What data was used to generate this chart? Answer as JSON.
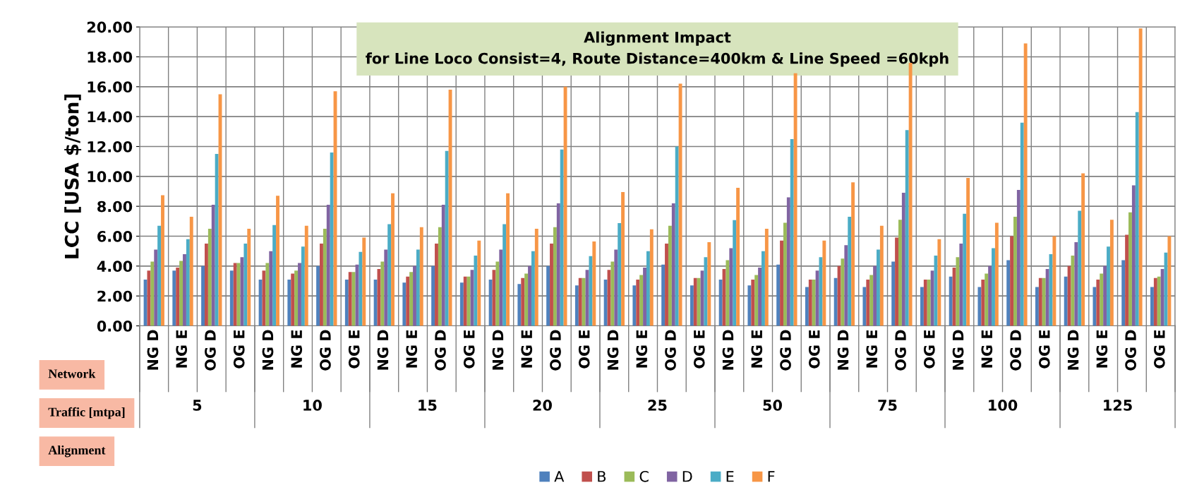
{
  "chart_data": {
    "type": "bar",
    "title": "Alignment Impact",
    "subtitle": "for Line Loco Consist=4, Route Distance=400km & Line Speed =60kph",
    "ylabel": "LCC [USA $/ton]",
    "categories": [
      "NG D",
      "NG E",
      "OG D",
      "OG E",
      "NG D",
      "NG E",
      "OG D",
      "OG E",
      "NG D",
      "NG E",
      "OG D",
      "OG E",
      "NG D",
      "NG E",
      "OG D",
      "OG E",
      "NG D",
      "NG E",
      "OG D",
      "OG E",
      "NG D",
      "NG E",
      "OG D",
      "OG E",
      "NG D",
      "NG E",
      "OG D",
      "OG E",
      "NG D",
      "NG E",
      "OG D",
      "OG E",
      "NG D",
      "NG E",
      "OG D",
      "OG E"
    ],
    "series": [
      {
        "name": "A",
        "color": "#4f81bd",
        "values": [
          3.1,
          3.7,
          4.0,
          3.7,
          3.1,
          3.1,
          4.0,
          3.1,
          3.1,
          2.9,
          4.0,
          2.9,
          3.1,
          2.8,
          4.0,
          2.7,
          3.1,
          2.7,
          4.1,
          2.7,
          3.1,
          2.7,
          4.1,
          2.6,
          3.2,
          2.6,
          4.3,
          2.6,
          3.3,
          2.6,
          4.4,
          2.6,
          3.3,
          2.6,
          4.4,
          2.6
        ]
      },
      {
        "name": "B",
        "color": "#c0504d",
        "values": [
          3.7,
          3.9,
          5.5,
          4.2,
          3.7,
          3.5,
          5.5,
          3.6,
          3.8,
          3.3,
          5.5,
          3.3,
          3.75,
          3.2,
          5.5,
          3.2,
          3.75,
          3.1,
          5.5,
          3.2,
          3.8,
          3.1,
          5.7,
          3.1,
          4.0,
          3.1,
          5.9,
          3.1,
          3.9,
          3.1,
          6.0,
          3.2,
          4.0,
          3.1,
          6.1,
          3.2
        ]
      },
      {
        "name": "C",
        "color": "#9bbb59",
        "values": [
          4.3,
          4.35,
          6.5,
          4.2,
          4.2,
          3.7,
          6.5,
          3.6,
          4.3,
          3.6,
          6.6,
          3.3,
          4.3,
          3.5,
          6.6,
          3.2,
          4.3,
          3.4,
          6.7,
          3.2,
          4.4,
          3.4,
          6.9,
          3.1,
          4.5,
          3.4,
          7.1,
          3.1,
          4.6,
          3.5,
          7.3,
          3.2,
          4.7,
          3.5,
          7.6,
          3.3
        ]
      },
      {
        "name": "D",
        "color": "#8064a2",
        "values": [
          5.1,
          4.8,
          8.1,
          4.6,
          5.0,
          4.2,
          8.1,
          4.1,
          5.1,
          4.0,
          8.1,
          3.75,
          5.1,
          4.0,
          8.2,
          3.75,
          5.1,
          3.9,
          8.2,
          3.7,
          5.2,
          3.9,
          8.6,
          3.7,
          5.4,
          4.0,
          8.9,
          3.7,
          5.5,
          4.0,
          9.1,
          3.8,
          5.6,
          4.0,
          9.4,
          3.8
        ]
      },
      {
        "name": "E",
        "color": "#4bacc6",
        "values": [
          6.7,
          5.8,
          11.5,
          5.5,
          6.75,
          5.3,
          11.6,
          4.95,
          6.8,
          5.1,
          11.7,
          4.7,
          6.8,
          5.0,
          11.8,
          4.67,
          6.87,
          5.0,
          12.0,
          4.6,
          7.07,
          5.0,
          12.5,
          4.6,
          7.3,
          5.1,
          13.1,
          4.7,
          7.5,
          5.2,
          13.6,
          4.8,
          7.7,
          5.3,
          14.3,
          4.9
        ]
      },
      {
        "name": "F",
        "color": "#f79646",
        "values": [
          8.74,
          7.3,
          15.5,
          6.5,
          8.7,
          6.7,
          15.7,
          5.9,
          8.87,
          6.6,
          15.8,
          5.7,
          8.87,
          6.5,
          16.0,
          5.65,
          8.95,
          6.46,
          16.2,
          5.6,
          9.24,
          6.5,
          16.9,
          5.7,
          9.6,
          6.7,
          17.6,
          5.8,
          9.9,
          6.9,
          18.9,
          6.0,
          10.2,
          7.1,
          19.9,
          6.0
        ]
      }
    ],
    "ylim": [
      0,
      20
    ],
    "yticks": [
      {
        "value": 0,
        "label": "0.00"
      },
      {
        "value": 2,
        "label": "2.00"
      },
      {
        "value": 4,
        "label": "4.00"
      },
      {
        "value": 6,
        "label": "6.00"
      },
      {
        "value": 8,
        "label": "8.00"
      },
      {
        "value": 10,
        "label": "10.00"
      },
      {
        "value": 12,
        "label": "12.00"
      },
      {
        "value": 14,
        "label": "14.00"
      },
      {
        "value": 16,
        "label": "16.00"
      },
      {
        "value": 18,
        "label": "18.00"
      },
      {
        "value": 20,
        "label": "20.00"
      }
    ],
    "grid": true,
    "legend": "bottom",
    "annotations": [
      "Network",
      "Traffic [mtpa]",
      "Alignment",
      "5",
      "10",
      "15",
      "20",
      "25",
      "50",
      "75",
      "100",
      "125"
    ]
  }
}
